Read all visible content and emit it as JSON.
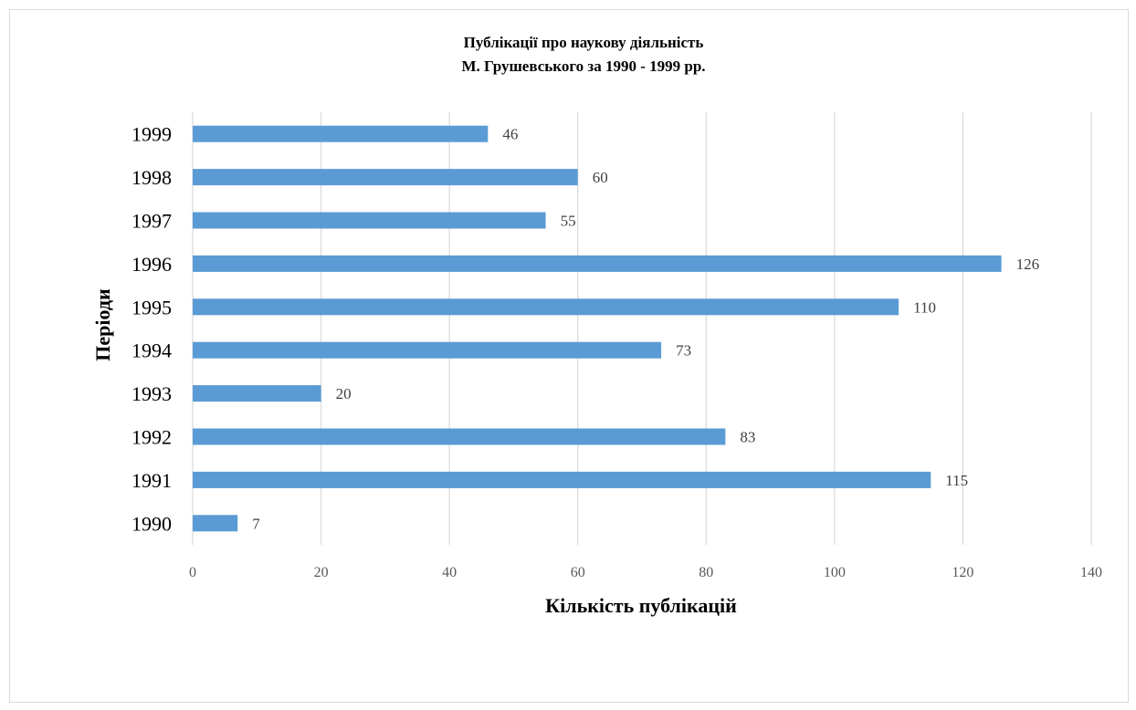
{
  "chart_data": {
    "type": "bar",
    "orientation": "horizontal",
    "title_lines": [
      "Публікації про наукову діяльність",
      "М. Грушевського за 1990 - 1999 рр."
    ],
    "xlabel": "Кількість публікацій",
    "ylabel": "Періоди",
    "categories": [
      "1990",
      "1991",
      "1992",
      "1993",
      "1994",
      "1995",
      "1996",
      "1997",
      "1998",
      "1999"
    ],
    "values": [
      7,
      115,
      83,
      20,
      73,
      110,
      126,
      55,
      60,
      46
    ],
    "xlim": [
      0,
      140
    ],
    "xticks": [
      0,
      20,
      40,
      60,
      80,
      100,
      120,
      140
    ],
    "grid": "vertical",
    "legend": "none",
    "data_labels": true,
    "bar_color": "#5B9BD5"
  }
}
